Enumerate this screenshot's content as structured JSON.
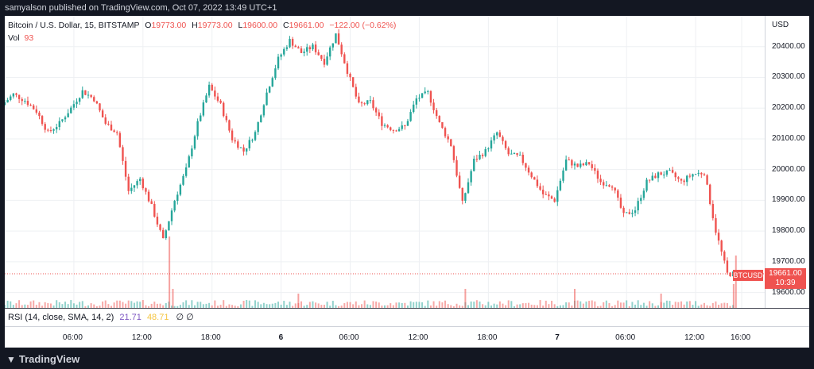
{
  "header": {
    "published_by": "samyalson published on TradingView.com, Oct 07, 2022 13:49 UTC+1"
  },
  "legend": {
    "symbol": "Bitcoin / U.S. Dollar, 15, BITSTAMP",
    "open_label": "O",
    "open": "19773.00",
    "high_label": "H",
    "high": "19773.00",
    "low_label": "L",
    "low": "19600.00",
    "close_label": "C",
    "close": "19661.00",
    "change": "−122.00 (−0.62%)",
    "vol_label": "Vol",
    "vol": "93"
  },
  "price_tag": {
    "symbol": "BTCUSD",
    "price": "19661.00",
    "countdown": "10:39"
  },
  "rsi": {
    "name": "RSI (14, close, SMA, 14, 2)",
    "value": "21.71",
    "sma": "48.71",
    "icons": "∅ ∅"
  },
  "footer": {
    "brand": "TradingView"
  },
  "colors": {
    "up": "#26a69a",
    "down": "#ef5350",
    "grid": "#eef0f3",
    "background": "#ffffff"
  },
  "chart_data": {
    "type": "candlestick",
    "title": "Bitcoin / U.S. Dollar, 15, BITSTAMP",
    "y_axis": {
      "label": "USD",
      "ticks": [
        20400,
        20300,
        20200,
        20100,
        20000,
        19900,
        19800,
        19700,
        19600
      ],
      "tick_labels": [
        "20400.00",
        "20300.00",
        "20200.00",
        "20100.00",
        "20000.00",
        "19900.00",
        "19800.00",
        "19700.00",
        "19600.00"
      ],
      "ylim": [
        19550,
        20500
      ]
    },
    "x_axis": {
      "ticks": [
        "06:00",
        "12:00",
        "18:00",
        "6",
        "06:00",
        "12:00",
        "18:00",
        "7",
        "06:00",
        "12:00",
        "16:00"
      ],
      "tick_hours": [
        6,
        12,
        18,
        24,
        30,
        36,
        42,
        48,
        54,
        60,
        64
      ],
      "xlim_hours": [
        0,
        66
      ]
    },
    "price_points": [
      [
        0,
        20210
      ],
      [
        1,
        20245
      ],
      [
        2,
        20225
      ],
      [
        3,
        20190
      ],
      [
        4,
        20120
      ],
      [
        5,
        20150
      ],
      [
        6,
        20200
      ],
      [
        7,
        20255
      ],
      [
        8,
        20230
      ],
      [
        9,
        20150
      ],
      [
        10,
        20120
      ],
      [
        11,
        19930
      ],
      [
        12,
        19970
      ],
      [
        13,
        19880
      ],
      [
        14,
        19770
      ],
      [
        15,
        19900
      ],
      [
        16,
        20000
      ],
      [
        17,
        20150
      ],
      [
        18,
        20270
      ],
      [
        19,
        20210
      ],
      [
        20,
        20100
      ],
      [
        21,
        20060
      ],
      [
        22,
        20120
      ],
      [
        23,
        20250
      ],
      [
        24,
        20360
      ],
      [
        25,
        20420
      ],
      [
        26,
        20380
      ],
      [
        27,
        20400
      ],
      [
        28,
        20350
      ],
      [
        29,
        20440
      ],
      [
        30,
        20320
      ],
      [
        31,
        20210
      ],
      [
        32,
        20220
      ],
      [
        33,
        20150
      ],
      [
        34,
        20130
      ],
      [
        35,
        20140
      ],
      [
        36,
        20230
      ],
      [
        37,
        20250
      ],
      [
        38,
        20150
      ],
      [
        39,
        20080
      ],
      [
        40,
        19890
      ],
      [
        41,
        20030
      ],
      [
        42,
        20060
      ],
      [
        43,
        20120
      ],
      [
        44,
        20050
      ],
      [
        45,
        20040
      ],
      [
        46,
        19980
      ],
      [
        47,
        19920
      ],
      [
        48,
        19900
      ],
      [
        49,
        20030
      ],
      [
        50,
        20010
      ],
      [
        51,
        20020
      ],
      [
        52,
        19960
      ],
      [
        53,
        19950
      ],
      [
        54,
        19850
      ],
      [
        55,
        19870
      ],
      [
        56,
        19960
      ],
      [
        57,
        19985
      ],
      [
        58,
        19990
      ],
      [
        59,
        19960
      ],
      [
        60,
        19985
      ],
      [
        61,
        19990
      ],
      [
        62,
        19800
      ],
      [
        63,
        19661
      ]
    ],
    "volume_spikes": [
      [
        14.3,
        0.75
      ],
      [
        14.6,
        0.2
      ],
      [
        25.5,
        0.15
      ],
      [
        40,
        0.2
      ],
      [
        49.5,
        0.2
      ],
      [
        57,
        0.15
      ],
      [
        63.3,
        0.25
      ],
      [
        63.5,
        0.55
      ]
    ],
    "last_price": 19661,
    "series": [
      {
        "name": "Vol"
      }
    ]
  }
}
